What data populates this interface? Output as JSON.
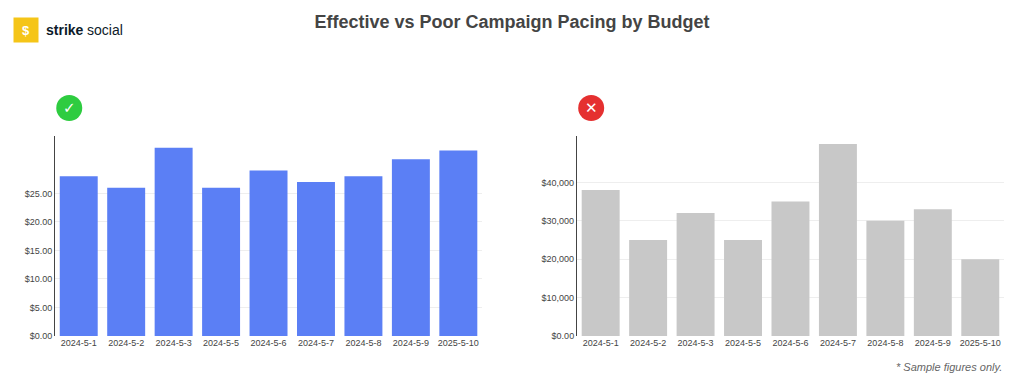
{
  "title": "Effective vs Poor Campaign Pacing by Budget",
  "annotations": [
    {
      "text": "$",
      "color": "#f5c518"
    },
    "strike",
    "social",
    "* Sample figures only."
  ],
  "chart_data": [
    {
      "type": "bar",
      "categories": [
        "2024-5-1",
        "2024-5-2",
        "2024-5-3",
        "2024-5-5",
        "2024-5-6",
        "2024-5-7",
        "2024-5-8",
        "2024-5-9",
        "2025-5-10"
      ],
      "values": [
        28.0,
        26.0,
        33.0,
        26.0,
        29.0,
        27.0,
        28.0,
        31.0,
        32.5
      ],
      "color": "#5b7ff5",
      "ylim": [
        0,
        35
      ],
      "yticks": [
        {
          "value": 0,
          "label": "$0.00"
        },
        {
          "value": 5,
          "label": "$5.00"
        },
        {
          "value": 10,
          "label": "$10.00"
        },
        {
          "value": 15,
          "label": "$15.00"
        },
        {
          "value": 20,
          "label": "$20.00"
        },
        {
          "value": 25,
          "label": "$25.00"
        }
      ],
      "grid": true,
      "annotations": [
        {
          "text": "✓",
          "color": "#2ecc40"
        }
      ]
    },
    {
      "type": "bar",
      "categories": [
        "2024-5-1",
        "2024-5-2",
        "2024-5-3",
        "2024-5-5",
        "2024-5-6",
        "2024-5-7",
        "2024-5-8",
        "2024-5-9",
        "2025-5-10"
      ],
      "values": [
        38000,
        25000,
        32000,
        25000,
        35000,
        50000,
        30000,
        33000,
        20000
      ],
      "color": "#c8c8c8",
      "ylim": [
        0,
        52000
      ],
      "yticks": [
        {
          "value": 0,
          "label": "$0.00"
        },
        {
          "value": 10000,
          "label": "$10,000"
        },
        {
          "value": 20000,
          "label": "$20,000"
        },
        {
          "value": 30000,
          "label": "$30,000"
        },
        {
          "value": 40000,
          "label": "$40,000"
        }
      ],
      "grid": true,
      "annotations": [
        {
          "text": "✕",
          "color": "#e53030"
        }
      ]
    }
  ]
}
